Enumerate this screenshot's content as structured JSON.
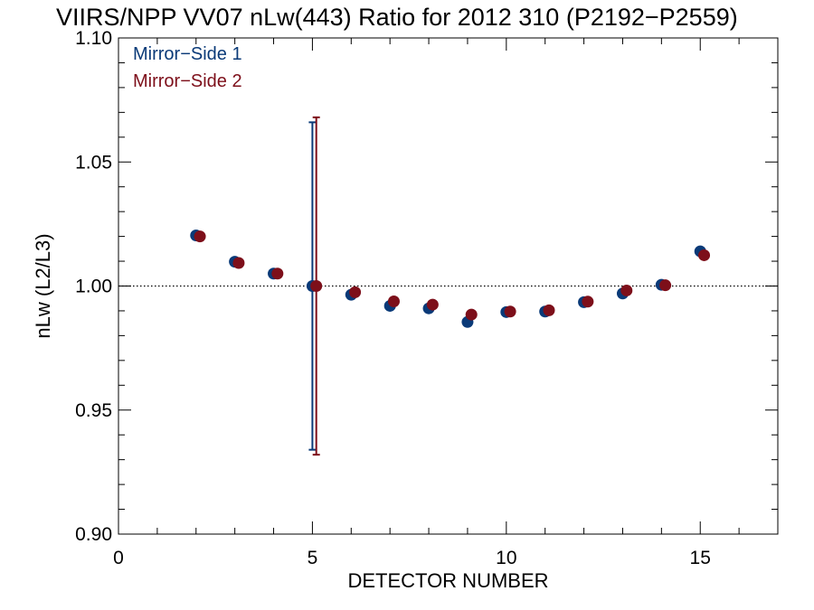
{
  "chart_data": {
    "type": "scatter",
    "title": "VIIRS/NPP VV07 nLw(443) Ratio for 2012 310 (P2192−P2559)",
    "xlabel": "DETECTOR NUMBER",
    "ylabel": "nLw (L2/L3)",
    "xlim": [
      0,
      17
    ],
    "ylim": [
      0.9,
      1.1
    ],
    "x_ticks": [
      0,
      5,
      10,
      15
    ],
    "x_tick_labels": [
      "0",
      "5",
      "10",
      "15"
    ],
    "y_ticks": [
      0.9,
      0.95,
      1.0,
      1.05,
      1.1
    ],
    "y_tick_labels": [
      "0.90",
      "0.95",
      "1.00",
      "1.05",
      "1.10"
    ],
    "reference_line": 1.0,
    "legend_position": "top-left",
    "grid": false,
    "series": [
      {
        "name": "Mirror−Side 1",
        "color": "#0a3a78",
        "x": [
          2,
          3,
          4,
          5,
          6,
          7,
          8,
          9,
          10,
          11,
          12,
          13,
          14,
          15
        ],
        "y": [
          1.0204,
          1.0098,
          1.005,
          1.0,
          0.9965,
          0.992,
          0.991,
          0.9855,
          0.9895,
          0.9897,
          0.9935,
          0.997,
          1.0005,
          1.014
        ],
        "error_bar": {
          "x": 5,
          "low": 0.934,
          "high": 1.066
        }
      },
      {
        "name": "Mirror−Side 2",
        "color": "#7d0f1a",
        "x": [
          2.1,
          3.1,
          4.1,
          5.1,
          6.1,
          7.1,
          8.1,
          9.1,
          10.1,
          11.1,
          12.1,
          13.1,
          14.1,
          15.1
        ],
        "y": [
          1.02,
          1.0093,
          1.005,
          1.0,
          0.9975,
          0.9938,
          0.9925,
          0.9885,
          0.9897,
          0.9902,
          0.9937,
          0.9982,
          1.0003,
          1.0124
        ],
        "error_bar": {
          "x": 5.1,
          "low": 0.932,
          "high": 1.068
        }
      }
    ]
  }
}
